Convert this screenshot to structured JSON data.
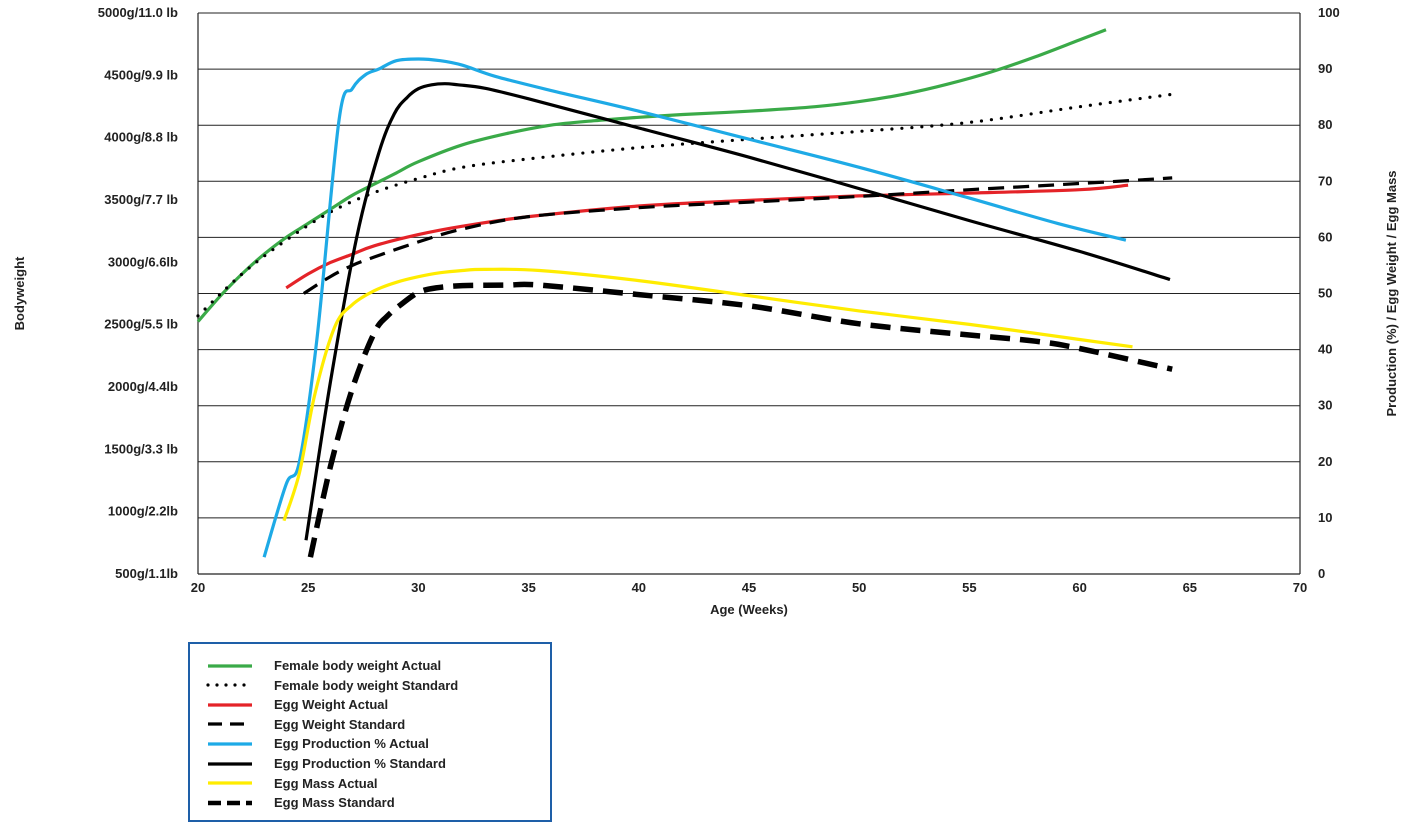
{
  "chart_data": {
    "type": "line",
    "title": "",
    "xlabel": "Age (Weeks)",
    "ylabel_left": "Bodyweight",
    "ylabel_right": "Production (%) / Egg Weight / Egg Mass",
    "xlim": [
      20,
      70
    ],
    "x_ticks": [
      "20",
      "25",
      "30",
      "35",
      "40",
      "45",
      "50",
      "55",
      "60",
      "65",
      "70"
    ],
    "y_left_ticks": [
      "500g/1.1lb",
      "1000g/2.2lb",
      "1500g/3.3 lb",
      "2000g/4.4lb",
      "2500g/5.5 lb",
      "3000g/6.6lb",
      "3500g/7.7 lb",
      "4000g/8.8 lb",
      "4500g/9.9 lb",
      "5000g/11.0 lb"
    ],
    "y_right_ticks": [
      "0",
      "10",
      "20",
      "30",
      "40",
      "50",
      "60",
      "70",
      "80",
      "90",
      "100"
    ],
    "ylim_right": [
      0,
      100
    ],
    "grid": "horizontal",
    "legend_position": "bottom-left",
    "series": [
      {
        "name": "Female body weight Actual",
        "color": "#3aaa48",
        "dash": "solid",
        "axis": "right",
        "x": [
          20,
          21,
          22,
          23,
          24,
          25,
          26,
          27,
          28,
          29,
          30,
          32,
          34,
          36,
          38,
          40,
          42,
          45,
          48,
          50,
          52,
          54,
          56,
          58,
          60,
          61.2
        ],
        "y": [
          45,
          49.5,
          53.5,
          57,
          60,
          62.5,
          65,
          67.5,
          69.5,
          71.5,
          73.5,
          76.5,
          78.5,
          80,
          80.8,
          81.4,
          81.9,
          82.5,
          83.3,
          84.2,
          85.5,
          87.3,
          89.5,
          92.2,
          95.2,
          97
        ]
      },
      {
        "name": "Female body weight Standard",
        "color": "#000000",
        "dash": "dot",
        "axis": "right",
        "x": [
          20,
          22,
          24,
          26,
          28,
          30,
          32,
          35,
          40,
          45,
          50,
          55,
          60,
          64.2
        ],
        "y": [
          46,
          53.5,
          59.5,
          64.5,
          68,
          70.5,
          72.5,
          74,
          76,
          77.5,
          78.9,
          80.5,
          83.3,
          85.5
        ]
      },
      {
        "name": "Egg Weight Actual",
        "color": "#e42328",
        "dash": "solid",
        "axis": "right",
        "x": [
          24,
          25,
          26,
          27,
          28,
          30,
          32,
          35,
          40,
          45,
          50,
          55,
          60,
          62.2
        ],
        "y": [
          51,
          53.5,
          55.5,
          57,
          58.5,
          60.5,
          62,
          63.7,
          65.6,
          66.6,
          67.4,
          67.9,
          68.5,
          69.3
        ]
      },
      {
        "name": "Egg Weight Standard",
        "color": "#000000",
        "dash": "dash",
        "axis": "right",
        "x": [
          24.8,
          26,
          27,
          28,
          30,
          32,
          35,
          40,
          45,
          50,
          55,
          60,
          64.2
        ],
        "y": [
          50,
          53,
          55,
          56.5,
          59.2,
          61.5,
          63.7,
          65.3,
          66.3,
          67.3,
          68.5,
          69.6,
          70.6
        ]
      },
      {
        "name": "Egg Production % Actual",
        "color": "#1eaae6",
        "dash": "solid",
        "axis": "right",
        "x": [
          23,
          24,
          24.6,
          25.4,
          26.4,
          27,
          27.6,
          28.2,
          29,
          30,
          31,
          32,
          33.5,
          36,
          40,
          45,
          50,
          55,
          59,
          62.1
        ],
        "y": [
          3,
          16,
          20,
          42,
          81,
          86.5,
          89,
          90,
          91.5,
          91.8,
          91.5,
          90.7,
          88.7,
          86.2,
          82.5,
          77.5,
          72.5,
          67,
          62.5,
          59.5
        ]
      },
      {
        "name": "Egg Production % Standard",
        "color": "#000000",
        "dash": "solid",
        "axis": "right",
        "x": [
          24.9,
          26,
          27.2,
          28.2,
          28.9,
          29.5,
          30,
          30.6,
          31.2,
          31.8,
          33,
          35,
          40,
          45,
          50,
          55,
          60,
          64.1
        ],
        "y": [
          6,
          34,
          60,
          75,
          82,
          85,
          86.5,
          87.2,
          87.4,
          87.2,
          86.6,
          84.7,
          79.5,
          74.3,
          68.7,
          63,
          57.5,
          52.5
        ]
      },
      {
        "name": "Egg Mass Actual",
        "color": "#ffec00",
        "dash": "solid",
        "axis": "right",
        "x": [
          23.9,
          24.6,
          25.3,
          26.2,
          27,
          28,
          29,
          30,
          31,
          32,
          33,
          35.5,
          40,
          45,
          50,
          55,
          60,
          62.4
        ],
        "y": [
          9.5,
          18,
          32,
          44,
          48,
          50.5,
          52,
          53,
          53.7,
          54.1,
          54.3,
          54.1,
          52.3,
          49.6,
          46.9,
          44.5,
          41.8,
          40.5
        ]
      },
      {
        "name": "Egg Mass Standard",
        "color": "#000000",
        "dash": "heavy-dash",
        "axis": "right",
        "x": [
          25.1,
          26,
          27,
          28,
          28.6,
          29.2,
          30,
          30.8,
          32,
          34,
          35.5,
          40,
          45,
          50,
          55,
          58,
          60,
          64.2
        ],
        "y": [
          3,
          19,
          33,
          43,
          46,
          48,
          50.2,
          51,
          51.4,
          51.5,
          51.5,
          49.8,
          47.8,
          44.6,
          42.6,
          41.5,
          40.2,
          36.5
        ]
      }
    ]
  }
}
